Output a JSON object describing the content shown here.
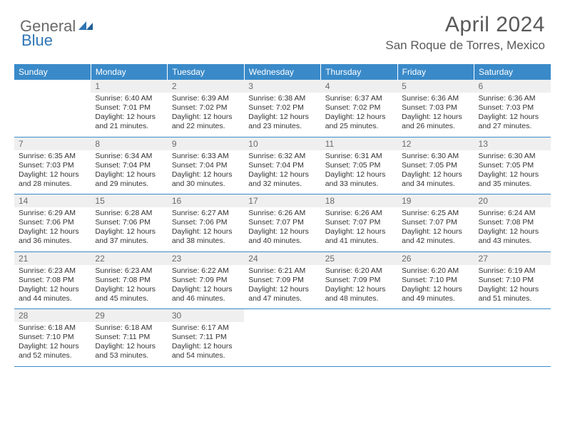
{
  "logo": {
    "general": "General",
    "blue": "Blue"
  },
  "title": "April 2024",
  "location": "San Roque de Torres, Mexico",
  "colors": {
    "header_bg": "#3a8ac9",
    "header_text": "#ffffff",
    "daynum_bg": "#efefef",
    "daynum_text": "#6a6a6a",
    "border": "#3a8ac9",
    "logo_blue": "#2f75b5",
    "logo_gray": "#6a6a6a",
    "title_color": "#595959"
  },
  "weekdays": [
    "Sunday",
    "Monday",
    "Tuesday",
    "Wednesday",
    "Thursday",
    "Friday",
    "Saturday"
  ],
  "weeks": [
    {
      "nums": [
        "",
        "1",
        "2",
        "3",
        "4",
        "5",
        "6"
      ],
      "details": [
        {
          "sunrise": "",
          "sunset": "",
          "daylight": ""
        },
        {
          "sunrise": "Sunrise: 6:40 AM",
          "sunset": "Sunset: 7:01 PM",
          "daylight": "Daylight: 12 hours and 21 minutes."
        },
        {
          "sunrise": "Sunrise: 6:39 AM",
          "sunset": "Sunset: 7:02 PM",
          "daylight": "Daylight: 12 hours and 22 minutes."
        },
        {
          "sunrise": "Sunrise: 6:38 AM",
          "sunset": "Sunset: 7:02 PM",
          "daylight": "Daylight: 12 hours and 23 minutes."
        },
        {
          "sunrise": "Sunrise: 6:37 AM",
          "sunset": "Sunset: 7:02 PM",
          "daylight": "Daylight: 12 hours and 25 minutes."
        },
        {
          "sunrise": "Sunrise: 6:36 AM",
          "sunset": "Sunset: 7:03 PM",
          "daylight": "Daylight: 12 hours and 26 minutes."
        },
        {
          "sunrise": "Sunrise: 6:36 AM",
          "sunset": "Sunset: 7:03 PM",
          "daylight": "Daylight: 12 hours and 27 minutes."
        }
      ]
    },
    {
      "nums": [
        "7",
        "8",
        "9",
        "10",
        "11",
        "12",
        "13"
      ],
      "details": [
        {
          "sunrise": "Sunrise: 6:35 AM",
          "sunset": "Sunset: 7:03 PM",
          "daylight": "Daylight: 12 hours and 28 minutes."
        },
        {
          "sunrise": "Sunrise: 6:34 AM",
          "sunset": "Sunset: 7:04 PM",
          "daylight": "Daylight: 12 hours and 29 minutes."
        },
        {
          "sunrise": "Sunrise: 6:33 AM",
          "sunset": "Sunset: 7:04 PM",
          "daylight": "Daylight: 12 hours and 30 minutes."
        },
        {
          "sunrise": "Sunrise: 6:32 AM",
          "sunset": "Sunset: 7:04 PM",
          "daylight": "Daylight: 12 hours and 32 minutes."
        },
        {
          "sunrise": "Sunrise: 6:31 AM",
          "sunset": "Sunset: 7:05 PM",
          "daylight": "Daylight: 12 hours and 33 minutes."
        },
        {
          "sunrise": "Sunrise: 6:30 AM",
          "sunset": "Sunset: 7:05 PM",
          "daylight": "Daylight: 12 hours and 34 minutes."
        },
        {
          "sunrise": "Sunrise: 6:30 AM",
          "sunset": "Sunset: 7:05 PM",
          "daylight": "Daylight: 12 hours and 35 minutes."
        }
      ]
    },
    {
      "nums": [
        "14",
        "15",
        "16",
        "17",
        "18",
        "19",
        "20"
      ],
      "details": [
        {
          "sunrise": "Sunrise: 6:29 AM",
          "sunset": "Sunset: 7:06 PM",
          "daylight": "Daylight: 12 hours and 36 minutes."
        },
        {
          "sunrise": "Sunrise: 6:28 AM",
          "sunset": "Sunset: 7:06 PM",
          "daylight": "Daylight: 12 hours and 37 minutes."
        },
        {
          "sunrise": "Sunrise: 6:27 AM",
          "sunset": "Sunset: 7:06 PM",
          "daylight": "Daylight: 12 hours and 38 minutes."
        },
        {
          "sunrise": "Sunrise: 6:26 AM",
          "sunset": "Sunset: 7:07 PM",
          "daylight": "Daylight: 12 hours and 40 minutes."
        },
        {
          "sunrise": "Sunrise: 6:26 AM",
          "sunset": "Sunset: 7:07 PM",
          "daylight": "Daylight: 12 hours and 41 minutes."
        },
        {
          "sunrise": "Sunrise: 6:25 AM",
          "sunset": "Sunset: 7:07 PM",
          "daylight": "Daylight: 12 hours and 42 minutes."
        },
        {
          "sunrise": "Sunrise: 6:24 AM",
          "sunset": "Sunset: 7:08 PM",
          "daylight": "Daylight: 12 hours and 43 minutes."
        }
      ]
    },
    {
      "nums": [
        "21",
        "22",
        "23",
        "24",
        "25",
        "26",
        "27"
      ],
      "details": [
        {
          "sunrise": "Sunrise: 6:23 AM",
          "sunset": "Sunset: 7:08 PM",
          "daylight": "Daylight: 12 hours and 44 minutes."
        },
        {
          "sunrise": "Sunrise: 6:23 AM",
          "sunset": "Sunset: 7:08 PM",
          "daylight": "Daylight: 12 hours and 45 minutes."
        },
        {
          "sunrise": "Sunrise: 6:22 AM",
          "sunset": "Sunset: 7:09 PM",
          "daylight": "Daylight: 12 hours and 46 minutes."
        },
        {
          "sunrise": "Sunrise: 6:21 AM",
          "sunset": "Sunset: 7:09 PM",
          "daylight": "Daylight: 12 hours and 47 minutes."
        },
        {
          "sunrise": "Sunrise: 6:20 AM",
          "sunset": "Sunset: 7:09 PM",
          "daylight": "Daylight: 12 hours and 48 minutes."
        },
        {
          "sunrise": "Sunrise: 6:20 AM",
          "sunset": "Sunset: 7:10 PM",
          "daylight": "Daylight: 12 hours and 49 minutes."
        },
        {
          "sunrise": "Sunrise: 6:19 AM",
          "sunset": "Sunset: 7:10 PM",
          "daylight": "Daylight: 12 hours and 51 minutes."
        }
      ]
    },
    {
      "nums": [
        "28",
        "29",
        "30",
        "",
        "",
        "",
        ""
      ],
      "details": [
        {
          "sunrise": "Sunrise: 6:18 AM",
          "sunset": "Sunset: 7:10 PM",
          "daylight": "Daylight: 12 hours and 52 minutes."
        },
        {
          "sunrise": "Sunrise: 6:18 AM",
          "sunset": "Sunset: 7:11 PM",
          "daylight": "Daylight: 12 hours and 53 minutes."
        },
        {
          "sunrise": "Sunrise: 6:17 AM",
          "sunset": "Sunset: 7:11 PM",
          "daylight": "Daylight: 12 hours and 54 minutes."
        },
        {
          "sunrise": "",
          "sunset": "",
          "daylight": ""
        },
        {
          "sunrise": "",
          "sunset": "",
          "daylight": ""
        },
        {
          "sunrise": "",
          "sunset": "",
          "daylight": ""
        },
        {
          "sunrise": "",
          "sunset": "",
          "daylight": ""
        }
      ]
    }
  ]
}
